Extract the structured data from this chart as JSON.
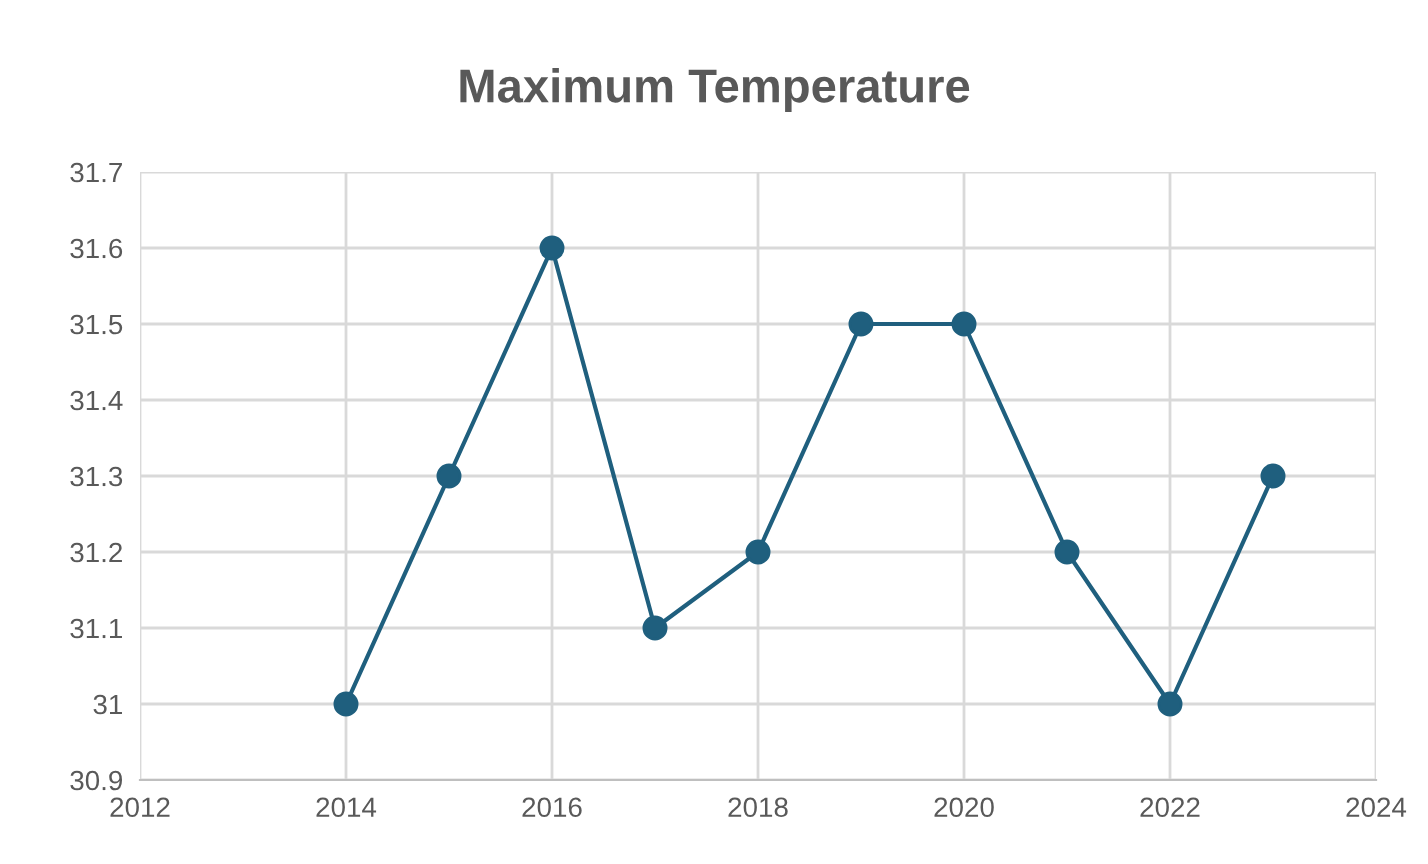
{
  "chart_data": {
    "type": "line",
    "title": "Maximum Temperature",
    "x": [
      2014,
      2015,
      2016,
      2017,
      2018,
      2019,
      2020,
      2021,
      2022,
      2023
    ],
    "series": [
      {
        "color": "#1f5f7e",
        "values": [
          31,
          31.3,
          31.6,
          31.1,
          31.2,
          31.5,
          31.5,
          31.2,
          31,
          31.3
        ]
      }
    ],
    "xlim": [
      2012,
      2024
    ],
    "xticks": [
      2012,
      2014,
      2016,
      2018,
      2020,
      2022,
      2024
    ],
    "ylim": [
      30.9,
      31.7
    ],
    "yticks": [
      30.9,
      31,
      31.1,
      31.2,
      31.3,
      31.4,
      31.5,
      31.6,
      31.7
    ],
    "grid": true,
    "marker": "circle",
    "line_style": "solid"
  }
}
